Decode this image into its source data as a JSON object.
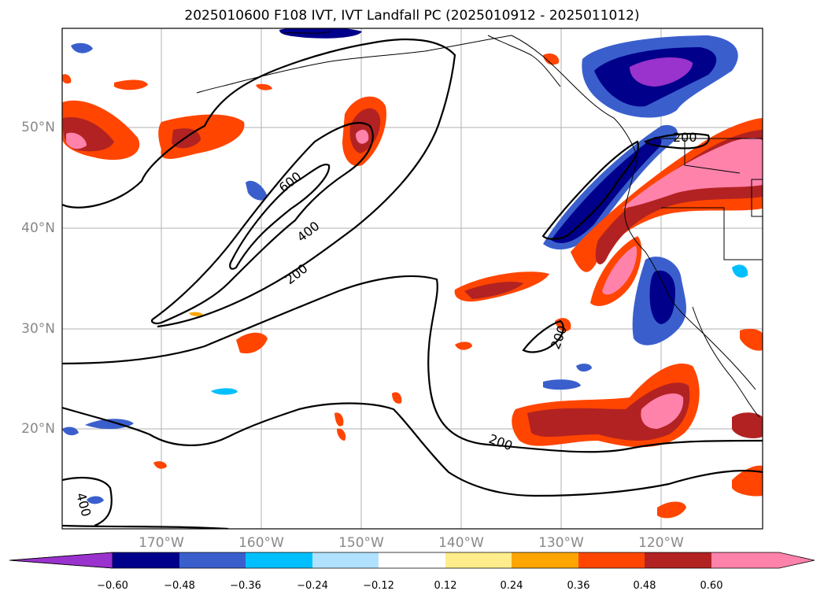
{
  "title": "2025010600 F108 IVT, IVT Landfall PC (2025010912 - 2025011012)",
  "lat_labels": [
    "50°N",
    "40°N",
    "30°N",
    "20°N"
  ],
  "lon_labels": [
    "170°W",
    "160°W",
    "150°W",
    "140°W",
    "130°W",
    "120°W"
  ],
  "contour_labels": [
    "600",
    "400",
    "200",
    "200",
    "200",
    "200",
    "400"
  ],
  "colorbar": {
    "ticks": [
      "−0.60",
      "−0.48",
      "−0.36",
      "−0.24",
      "−0.12",
      "0.12",
      "0.24",
      "0.36",
      "0.48",
      "0.60"
    ],
    "colors": [
      "#9a32cd",
      "#00008b",
      "#3a5fcd",
      "#00bfff",
      "#b0e2ff",
      "#ffffff",
      "#ffec8b",
      "#ffa500",
      "#ff4500",
      "#b22222",
      "#ff82ab"
    ]
  }
}
